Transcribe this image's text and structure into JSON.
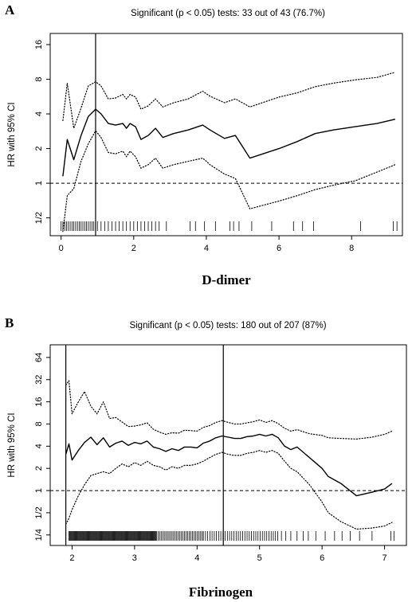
{
  "chart_data": [
    {
      "type": "line",
      "panel": "A",
      "subtitle": "Significant (p < 0.05) tests: 33 out of 43 (76.7%)",
      "xlabel": "D-dimer",
      "ylabel": "HR with 95% CI",
      "y_scale": "log2",
      "xlim": [
        -0.3,
        9.4
      ],
      "ylim": [
        0.35,
        20
      ],
      "x_ticks": [
        0,
        2,
        4,
        6,
        8
      ],
      "y_ticks": [
        0.5,
        1,
        2,
        4,
        8,
        16
      ],
      "y_tick_labels": [
        "1/2",
        "1",
        "2",
        "4",
        "8",
        "16"
      ],
      "reference_line_y": 1,
      "reference_line_style": "dashed",
      "vertical_line_x": 0.95,
      "series": [
        {
          "role": "estimate",
          "style": "solid",
          "x": [
            0.05,
            0.17,
            0.35,
            0.55,
            0.75,
            0.95,
            1.1,
            1.3,
            1.5,
            1.7,
            1.8,
            1.9,
            2.05,
            2.2,
            2.4,
            2.6,
            2.8,
            3.1,
            3.5,
            3.9,
            4.1,
            4.5,
            4.8,
            5.2,
            6.0,
            6.5,
            7.0,
            7.5,
            8.1,
            8.7,
            9.2
          ],
          "y": [
            1.15,
            2.4,
            1.6,
            2.6,
            3.8,
            4.4,
            4.0,
            3.3,
            3.2,
            3.3,
            3.0,
            3.3,
            3.1,
            2.4,
            2.6,
            3.0,
            2.5,
            2.7,
            2.9,
            3.2,
            2.9,
            2.45,
            2.6,
            1.65,
            2.0,
            2.3,
            2.7,
            2.9,
            3.1,
            3.3,
            3.6
          ]
        },
        {
          "role": "upper_95ci",
          "style": "dotted",
          "x": [
            0.05,
            0.17,
            0.35,
            0.55,
            0.75,
            0.95,
            1.1,
            1.3,
            1.5,
            1.7,
            1.8,
            1.9,
            2.05,
            2.2,
            2.4,
            2.6,
            2.8,
            3.1,
            3.5,
            3.9,
            4.1,
            4.5,
            4.8,
            5.2,
            6.0,
            6.5,
            7.0,
            7.5,
            8.1,
            8.7,
            9.2
          ],
          "y": [
            3.5,
            7.4,
            3.0,
            4.5,
            7.0,
            7.6,
            7.0,
            5.4,
            5.5,
            5.9,
            5.4,
            5.9,
            5.6,
            4.4,
            4.7,
            5.4,
            4.6,
            5.0,
            5.4,
            6.3,
            5.7,
            5.0,
            5.4,
            4.6,
            5.6,
            6.1,
            6.9,
            7.4,
            7.9,
            8.3,
            9.2
          ]
        },
        {
          "role": "lower_95ci",
          "style": "dotted",
          "x": [
            0.05,
            0.17,
            0.35,
            0.55,
            0.75,
            0.95,
            1.1,
            1.3,
            1.5,
            1.7,
            1.8,
            1.9,
            2.05,
            2.2,
            2.4,
            2.6,
            2.8,
            3.1,
            3.5,
            3.9,
            4.1,
            4.5,
            4.8,
            5.2,
            6.0,
            6.5,
            7.0,
            7.5,
            8.1,
            8.7,
            9.2
          ],
          "y": [
            0.38,
            0.78,
            0.9,
            1.55,
            2.2,
            2.85,
            2.5,
            1.85,
            1.8,
            1.9,
            1.7,
            1.9,
            1.7,
            1.35,
            1.45,
            1.65,
            1.35,
            1.45,
            1.55,
            1.65,
            1.45,
            1.2,
            1.1,
            0.6,
            0.7,
            0.78,
            0.88,
            0.96,
            1.05,
            1.25,
            1.45
          ]
        }
      ],
      "rug": [
        0.0,
        0.05,
        0.1,
        0.15,
        0.2,
        0.25,
        0.3,
        0.35,
        0.4,
        0.45,
        0.5,
        0.55,
        0.6,
        0.65,
        0.7,
        0.75,
        0.8,
        0.85,
        0.9,
        0.95,
        1.0,
        1.1,
        1.2,
        1.3,
        1.4,
        1.5,
        1.6,
        1.7,
        1.8,
        1.9,
        2.0,
        2.1,
        2.2,
        2.3,
        2.4,
        2.5,
        2.6,
        2.7,
        2.9,
        3.55,
        3.7,
        3.95,
        4.25,
        4.65,
        4.75,
        4.9,
        5.25,
        5.8,
        6.4,
        6.65,
        6.95,
        8.25,
        9.15,
        9.25
      ]
    },
    {
      "type": "line",
      "panel": "B",
      "subtitle": "Significant (p < 0.05) tests: 180 out of 207 (87%)",
      "xlabel": "Fibrinogen",
      "ylabel": "HR with 95% CI",
      "y_scale": "log2",
      "xlim": [
        1.65,
        7.35
      ],
      "ylim": [
        0.18,
        95
      ],
      "x_ticks": [
        2,
        3,
        4,
        5,
        6,
        7
      ],
      "y_ticks": [
        0.25,
        0.5,
        1,
        2,
        4,
        8,
        16,
        32,
        64
      ],
      "y_tick_labels": [
        "1/4",
        "1/2",
        "1",
        "2",
        "4",
        "8",
        "16",
        "32",
        "64"
      ],
      "reference_line_y": 1,
      "reference_line_style": "dashed",
      "vertical_lines_x": [
        1.9,
        4.42
      ],
      "series": [
        {
          "role": "estimate",
          "style": "solid",
          "x": [
            1.9,
            1.95,
            2.0,
            2.1,
            2.2,
            2.3,
            2.4,
            2.5,
            2.6,
            2.7,
            2.8,
            2.9,
            3.0,
            3.1,
            3.2,
            3.3,
            3.4,
            3.5,
            3.6,
            3.7,
            3.8,
            3.9,
            4.0,
            4.1,
            4.2,
            4.3,
            4.4,
            4.5,
            4.6,
            4.7,
            4.8,
            4.9,
            5.0,
            5.1,
            5.2,
            5.3,
            5.4,
            5.5,
            5.6,
            5.8,
            6.0,
            6.1,
            6.3,
            6.55,
            6.8,
            7.0,
            7.12
          ],
          "y": [
            3.1,
            4.3,
            2.6,
            3.5,
            4.5,
            5.3,
            4.2,
            5.2,
            3.9,
            4.4,
            4.7,
            4.1,
            4.5,
            4.3,
            4.7,
            3.9,
            3.7,
            3.4,
            3.7,
            3.5,
            3.9,
            3.9,
            3.8,
            4.4,
            4.7,
            5.2,
            5.5,
            5.3,
            5.1,
            5.1,
            5.4,
            5.5,
            5.8,
            5.5,
            5.8,
            5.2,
            4.0,
            3.6,
            3.9,
            2.8,
            2.0,
            1.55,
            1.25,
            0.85,
            0.95,
            1.05,
            1.25
          ]
        },
        {
          "role": "upper_95ci",
          "style": "dotted",
          "x": [
            1.9,
            1.95,
            2.0,
            2.1,
            2.2,
            2.3,
            2.4,
            2.5,
            2.6,
            2.7,
            2.8,
            2.9,
            3.0,
            3.1,
            3.2,
            3.3,
            3.4,
            3.5,
            3.6,
            3.7,
            3.8,
            3.9,
            4.0,
            4.1,
            4.2,
            4.3,
            4.4,
            4.5,
            4.6,
            4.7,
            4.8,
            4.9,
            5.0,
            5.1,
            5.2,
            5.3,
            5.4,
            5.5,
            5.6,
            5.8,
            6.0,
            6.1,
            6.3,
            6.55,
            6.8,
            7.0,
            7.12
          ],
          "y": [
            27,
            31,
            11,
            16,
            22,
            14,
            11,
            16,
            9.5,
            9.8,
            8.5,
            7.4,
            7.5,
            7.8,
            8.3,
            6.8,
            6.2,
            5.8,
            6.1,
            6.0,
            6.6,
            6.5,
            6.4,
            7.2,
            7.6,
            8.4,
            8.9,
            8.4,
            8.0,
            8.0,
            8.3,
            8.6,
            9.1,
            8.4,
            8.9,
            8.1,
            7.0,
            6.4,
            6.7,
            5.9,
            5.6,
            5.2,
            5.1,
            5.0,
            5.3,
            5.8,
            6.4
          ]
        },
        {
          "role": "lower_95ci",
          "style": "dotted",
          "x": [
            1.9,
            1.95,
            2.0,
            2.1,
            2.2,
            2.3,
            2.4,
            2.5,
            2.6,
            2.7,
            2.8,
            2.9,
            3.0,
            3.1,
            3.2,
            3.3,
            3.4,
            3.5,
            3.6,
            3.7,
            3.8,
            3.9,
            4.0,
            4.1,
            4.2,
            4.3,
            4.4,
            4.5,
            4.6,
            4.7,
            4.8,
            4.9,
            5.0,
            5.1,
            5.2,
            5.3,
            5.4,
            5.5,
            5.6,
            5.8,
            6.0,
            6.1,
            6.3,
            6.55,
            6.8,
            7.0,
            7.12
          ],
          "y": [
            0.35,
            0.42,
            0.55,
            0.85,
            1.2,
            1.6,
            1.7,
            1.8,
            1.7,
            2.0,
            2.3,
            2.1,
            2.4,
            2.2,
            2.5,
            2.2,
            2.1,
            1.9,
            2.1,
            2.0,
            2.2,
            2.2,
            2.3,
            2.5,
            2.8,
            3.1,
            3.3,
            3.1,
            3.0,
            3.0,
            3.2,
            3.3,
            3.5,
            3.3,
            3.5,
            3.2,
            2.5,
            2.0,
            1.8,
            1.2,
            0.7,
            0.5,
            0.38,
            0.3,
            0.31,
            0.33,
            0.37
          ]
        }
      ],
      "rug_dense_ranges": [
        [
          1.95,
          3.35,
          0.012
        ],
        [
          3.35,
          4.1,
          0.025
        ],
        [
          4.1,
          5.3,
          0.035
        ]
      ],
      "rug": [
        5.35,
        5.42,
        5.5,
        5.6,
        5.7,
        5.78,
        5.9,
        6.05,
        6.2,
        6.32,
        6.45,
        6.6,
        6.8,
        7.1,
        7.15
      ]
    }
  ]
}
